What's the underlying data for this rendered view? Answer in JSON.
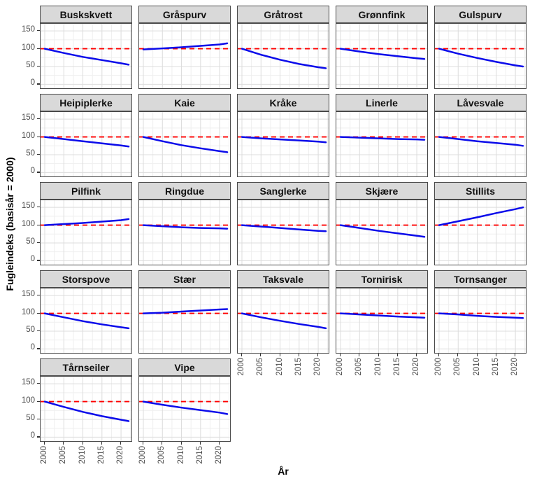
{
  "chart_data": {
    "type": "line",
    "title": "",
    "xlabel": "År",
    "ylabel": "Fugleindeks (basisår = 2000)",
    "faceting": "one panel per bird species, 5 columns",
    "x_ticks": [
      2000,
      2005,
      2010,
      2015,
      2020
    ],
    "y_ticks": [
      0,
      50,
      100,
      150
    ],
    "x_minor_ticks": [
      2002.5,
      2007.5,
      2012.5,
      2017.5,
      2022.5
    ],
    "y_minor_ticks": [
      25,
      75,
      125
    ],
    "x_range": [
      1998.9,
      2023.1
    ],
    "y_range": [
      -15,
      170
    ],
    "grid": "major and minor gridlines on white panel",
    "reference_line": {
      "y": 100,
      "color": "#ff0000",
      "style": "dashed"
    },
    "x": [
      2000,
      2005,
      2010,
      2015,
      2020,
      2022
    ],
    "series": [
      {
        "name": "Buskskvett",
        "values": [
          100,
          88,
          77,
          68,
          59,
          55
        ]
      },
      {
        "name": "Gråspurv",
        "values": [
          98,
          101,
          104,
          108,
          112,
          115
        ]
      },
      {
        "name": "Gråtrost",
        "values": [
          100,
          83,
          69,
          57,
          48,
          45
        ]
      },
      {
        "name": "Grønnfink",
        "values": [
          100,
          92,
          85,
          79,
          73,
          71
        ]
      },
      {
        "name": "Gulspurv",
        "values": [
          100,
          86,
          74,
          63,
          53,
          50
        ]
      },
      {
        "name": "Heipiplerke",
        "values": [
          100,
          94,
          88,
          82,
          76,
          73
        ]
      },
      {
        "name": "Kaie",
        "values": [
          100,
          88,
          77,
          68,
          60,
          57
        ]
      },
      {
        "name": "Kråke",
        "values": [
          100,
          96,
          93,
          90,
          87,
          85
        ]
      },
      {
        "name": "Linerle",
        "values": [
          100,
          98,
          96,
          94,
          93,
          92
        ]
      },
      {
        "name": "Låvesvale",
        "values": [
          100,
          94,
          88,
          83,
          78,
          75
        ]
      },
      {
        "name": "Pilfink",
        "values": [
          100,
          103,
          106,
          110,
          114,
          117
        ]
      },
      {
        "name": "Ringdue",
        "values": [
          100,
          97,
          94,
          92,
          91,
          90
        ]
      },
      {
        "name": "Sanglerke",
        "values": [
          100,
          96,
          92,
          88,
          84,
          83
        ]
      },
      {
        "name": "Skjære",
        "values": [
          100,
          92,
          84,
          77,
          70,
          67
        ]
      },
      {
        "name": "Stillits",
        "values": [
          100,
          111,
          122,
          134,
          145,
          150
        ]
      },
      {
        "name": "Storspove",
        "values": [
          100,
          89,
          78,
          69,
          61,
          58
        ]
      },
      {
        "name": "Stær",
        "values": [
          100,
          102,
          105,
          108,
          111,
          112
        ]
      },
      {
        "name": "Taksvale",
        "values": [
          100,
          89,
          79,
          70,
          62,
          58
        ]
      },
      {
        "name": "Tornirisk",
        "values": [
          100,
          97,
          94,
          91,
          89,
          88
        ]
      },
      {
        "name": "Tornsanger",
        "values": [
          100,
          97,
          93,
          90,
          88,
          87
        ]
      },
      {
        "name": "Tårnseiler",
        "values": [
          100,
          85,
          71,
          59,
          49,
          45
        ]
      },
      {
        "name": "Vipe",
        "values": [
          100,
          91,
          83,
          76,
          69,
          65
        ]
      }
    ],
    "colors": {
      "line": "#0b0bea",
      "reference": "#ff0000",
      "strip_bg": "#d9d9d9",
      "panel_border": "#4a4a4a",
      "grid_major": "#dcdcdc",
      "grid_minor": "#efefef",
      "tick_label": "#4d4d4d"
    },
    "legend": "none"
  }
}
